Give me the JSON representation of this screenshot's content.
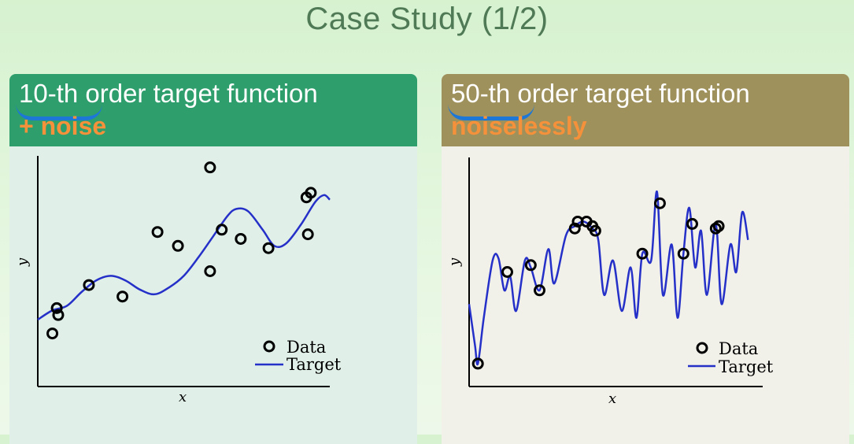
{
  "slide": {
    "title": "Case Study (1/2)"
  },
  "panels": {
    "left": {
      "highlight": "10-th",
      "header_rest": " order target function",
      "subheader": "+ noise",
      "header_color": "#2e9e6c",
      "subheader_color": "#f5913a"
    },
    "right": {
      "highlight": "50-th",
      "header_rest": " order target function",
      "subheader": "noiselessly",
      "header_color": "#9f915c",
      "subheader_color": "#f5913a"
    }
  },
  "chart_data": [
    {
      "type": "scatter",
      "xlabel": "x",
      "ylabel": "y",
      "xlim": [
        0,
        1
      ],
      "ylim": [
        0,
        1
      ],
      "legend": [
        "Data",
        "Target"
      ],
      "legend_placement": "bottom-right",
      "series_colors": {
        "data": "#000000",
        "target": "#2530c8"
      },
      "data_points": [
        {
          "x": 0.05,
          "y": 0.23
        },
        {
          "x": 0.065,
          "y": 0.34
        },
        {
          "x": 0.07,
          "y": 0.31
        },
        {
          "x": 0.175,
          "y": 0.44
        },
        {
          "x": 0.29,
          "y": 0.39
        },
        {
          "x": 0.41,
          "y": 0.67
        },
        {
          "x": 0.48,
          "y": 0.61
        },
        {
          "x": 0.59,
          "y": 0.95
        },
        {
          "x": 0.59,
          "y": 0.5
        },
        {
          "x": 0.63,
          "y": 0.68
        },
        {
          "x": 0.695,
          "y": 0.64
        },
        {
          "x": 0.79,
          "y": 0.6
        },
        {
          "x": 0.92,
          "y": 0.82
        },
        {
          "x": 0.935,
          "y": 0.84
        },
        {
          "x": 0.925,
          "y": 0.66
        }
      ],
      "target_curve": [
        {
          "x": 0.0,
          "y": 0.29
        },
        {
          "x": 0.05,
          "y": 0.33
        },
        {
          "x": 0.1,
          "y": 0.35
        },
        {
          "x": 0.15,
          "y": 0.41
        },
        {
          "x": 0.2,
          "y": 0.46
        },
        {
          "x": 0.25,
          "y": 0.48
        },
        {
          "x": 0.3,
          "y": 0.46
        },
        {
          "x": 0.35,
          "y": 0.42
        },
        {
          "x": 0.4,
          "y": 0.4
        },
        {
          "x": 0.45,
          "y": 0.43
        },
        {
          "x": 0.5,
          "y": 0.48
        },
        {
          "x": 0.55,
          "y": 0.56
        },
        {
          "x": 0.6,
          "y": 0.65
        },
        {
          "x": 0.65,
          "y": 0.74
        },
        {
          "x": 0.68,
          "y": 0.77
        },
        {
          "x": 0.72,
          "y": 0.76
        },
        {
          "x": 0.77,
          "y": 0.68
        },
        {
          "x": 0.81,
          "y": 0.61
        },
        {
          "x": 0.85,
          "y": 0.62
        },
        {
          "x": 0.9,
          "y": 0.7
        },
        {
          "x": 0.95,
          "y": 0.8
        },
        {
          "x": 0.98,
          "y": 0.83
        },
        {
          "x": 1.0,
          "y": 0.81
        }
      ]
    },
    {
      "type": "scatter",
      "xlabel": "x",
      "ylabel": "y",
      "xlim": [
        0,
        1
      ],
      "ylim": [
        0,
        1
      ],
      "legend": [
        "Data",
        "Target"
      ],
      "legend_placement": "bottom-right",
      "series_colors": {
        "data": "#000000",
        "target": "#2530c8"
      },
      "data_points": [
        {
          "x": 0.03,
          "y": 0.1
        },
        {
          "x": 0.13,
          "y": 0.5
        },
        {
          "x": 0.21,
          "y": 0.53
        },
        {
          "x": 0.24,
          "y": 0.42
        },
        {
          "x": 0.36,
          "y": 0.69
        },
        {
          "x": 0.37,
          "y": 0.72
        },
        {
          "x": 0.4,
          "y": 0.72
        },
        {
          "x": 0.42,
          "y": 0.7
        },
        {
          "x": 0.43,
          "y": 0.68
        },
        {
          "x": 0.59,
          "y": 0.58
        },
        {
          "x": 0.65,
          "y": 0.8
        },
        {
          "x": 0.73,
          "y": 0.58
        },
        {
          "x": 0.76,
          "y": 0.71
        },
        {
          "x": 0.84,
          "y": 0.69
        },
        {
          "x": 0.85,
          "y": 0.7
        }
      ],
      "target_curve": [
        {
          "x": 0.0,
          "y": 0.36
        },
        {
          "x": 0.02,
          "y": 0.18
        },
        {
          "x": 0.03,
          "y": 0.1
        },
        {
          "x": 0.05,
          "y": 0.3
        },
        {
          "x": 0.08,
          "y": 0.55
        },
        {
          "x": 0.1,
          "y": 0.56
        },
        {
          "x": 0.12,
          "y": 0.42
        },
        {
          "x": 0.14,
          "y": 0.48
        },
        {
          "x": 0.16,
          "y": 0.33
        },
        {
          "x": 0.19,
          "y": 0.55
        },
        {
          "x": 0.21,
          "y": 0.52
        },
        {
          "x": 0.24,
          "y": 0.42
        },
        {
          "x": 0.27,
          "y": 0.6
        },
        {
          "x": 0.29,
          "y": 0.45
        },
        {
          "x": 0.33,
          "y": 0.66
        },
        {
          "x": 0.36,
          "y": 0.7
        },
        {
          "x": 0.39,
          "y": 0.72
        },
        {
          "x": 0.42,
          "y": 0.69
        },
        {
          "x": 0.44,
          "y": 0.64
        },
        {
          "x": 0.46,
          "y": 0.4
        },
        {
          "x": 0.49,
          "y": 0.55
        },
        {
          "x": 0.52,
          "y": 0.33
        },
        {
          "x": 0.55,
          "y": 0.52
        },
        {
          "x": 0.57,
          "y": 0.3
        },
        {
          "x": 0.59,
          "y": 0.58
        },
        {
          "x": 0.62,
          "y": 0.55
        },
        {
          "x": 0.64,
          "y": 0.85
        },
        {
          "x": 0.66,
          "y": 0.4
        },
        {
          "x": 0.69,
          "y": 0.62
        },
        {
          "x": 0.71,
          "y": 0.3
        },
        {
          "x": 0.73,
          "y": 0.58
        },
        {
          "x": 0.75,
          "y": 0.78
        },
        {
          "x": 0.77,
          "y": 0.52
        },
        {
          "x": 0.79,
          "y": 0.68
        },
        {
          "x": 0.81,
          "y": 0.4
        },
        {
          "x": 0.84,
          "y": 0.71
        },
        {
          "x": 0.86,
          "y": 0.36
        },
        {
          "x": 0.89,
          "y": 0.62
        },
        {
          "x": 0.91,
          "y": 0.5
        },
        {
          "x": 0.93,
          "y": 0.76
        },
        {
          "x": 0.95,
          "y": 0.64
        }
      ]
    }
  ]
}
